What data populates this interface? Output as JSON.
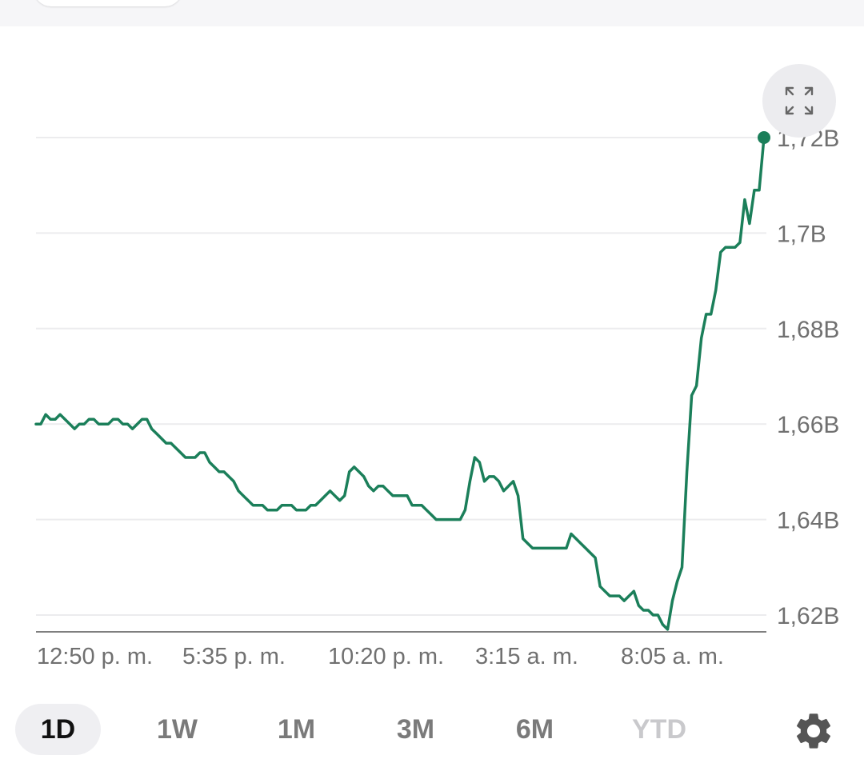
{
  "chart_data": {
    "type": "line",
    "title": "",
    "xlabel": "",
    "ylabel": "",
    "x_tick_labels": [
      "12:50 p. m.",
      "5:35 p. m.",
      "10:20 p. m.",
      "3:15 a. m.",
      "8:05 a. m."
    ],
    "y_tick_labels": [
      "1,72B",
      "1,7B",
      "1,68B",
      "1,66B",
      "1,64B",
      "1,62B"
    ],
    "y_tick_values": [
      1.72,
      1.7,
      1.68,
      1.66,
      1.64,
      1.62
    ],
    "ylim": [
      1.6165,
      1.7295
    ],
    "grid": true,
    "line_color": "#1b7f5a",
    "series": [
      {
        "values": [
          1.66,
          1.66,
          1.662,
          1.661,
          1.661,
          1.662,
          1.661,
          1.66,
          1.659,
          1.66,
          1.66,
          1.661,
          1.661,
          1.66,
          1.66,
          1.66,
          1.661,
          1.661,
          1.66,
          1.66,
          1.659,
          1.66,
          1.661,
          1.661,
          1.659,
          1.658,
          1.657,
          1.656,
          1.656,
          1.655,
          1.654,
          1.653,
          1.653,
          1.653,
          1.654,
          1.654,
          1.652,
          1.651,
          1.65,
          1.65,
          1.649,
          1.648,
          1.646,
          1.645,
          1.644,
          1.643,
          1.643,
          1.643,
          1.642,
          1.642,
          1.642,
          1.643,
          1.643,
          1.643,
          1.642,
          1.642,
          1.642,
          1.643,
          1.643,
          1.644,
          1.645,
          1.646,
          1.645,
          1.644,
          1.645,
          1.65,
          1.651,
          1.65,
          1.649,
          1.647,
          1.646,
          1.647,
          1.647,
          1.646,
          1.645,
          1.645,
          1.645,
          1.645,
          1.643,
          1.643,
          1.643,
          1.642,
          1.641,
          1.64,
          1.64,
          1.64,
          1.64,
          1.64,
          1.64,
          1.642,
          1.648,
          1.653,
          1.652,
          1.648,
          1.649,
          1.649,
          1.648,
          1.646,
          1.647,
          1.648,
          1.645,
          1.636,
          1.635,
          1.634,
          1.634,
          1.634,
          1.634,
          1.634,
          1.634,
          1.634,
          1.634,
          1.637,
          1.636,
          1.635,
          1.634,
          1.633,
          1.632,
          1.626,
          1.625,
          1.624,
          1.624,
          1.624,
          1.623,
          1.624,
          1.625,
          1.622,
          1.621,
          1.621,
          1.62,
          1.62,
          1.618,
          1.617,
          1.623,
          1.627,
          1.63,
          1.65,
          1.666,
          1.668,
          1.678,
          1.683,
          1.683,
          1.688,
          1.696,
          1.697,
          1.697,
          1.697,
          1.698,
          1.707,
          1.702,
          1.709,
          1.709,
          1.72
        ]
      }
    ]
  },
  "range_tabs": [
    {
      "label": "1D",
      "selected": true,
      "disabled": false
    },
    {
      "label": "1W",
      "selected": false,
      "disabled": false
    },
    {
      "label": "1M",
      "selected": false,
      "disabled": false
    },
    {
      "label": "3M",
      "selected": false,
      "disabled": false
    },
    {
      "label": "6M",
      "selected": false,
      "disabled": false
    },
    {
      "label": "YTD",
      "selected": false,
      "disabled": true
    }
  ],
  "icons": {
    "expand": "expand-icon",
    "settings": "gear-icon"
  }
}
